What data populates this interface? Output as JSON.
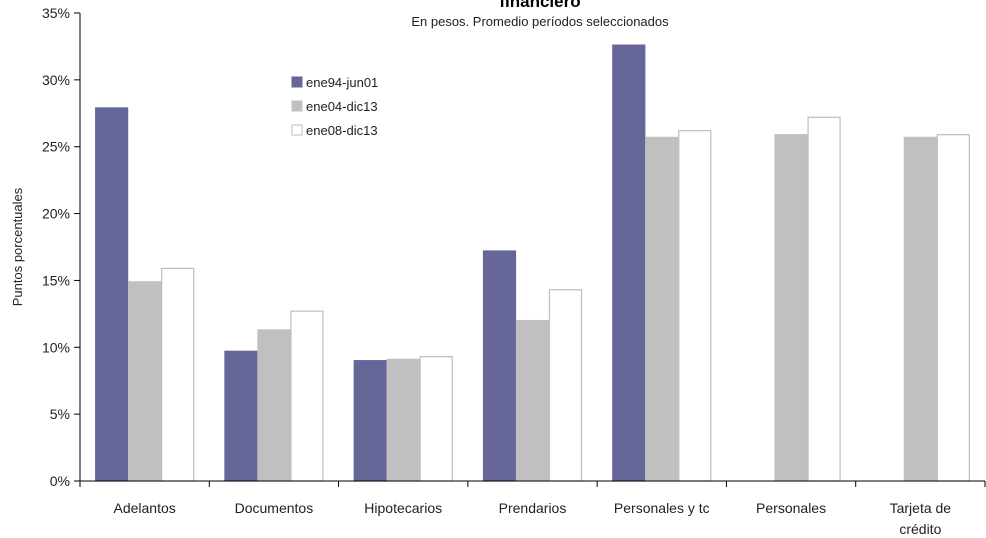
{
  "chart_data": {
    "type": "bar",
    "title": "financiero",
    "subtitle": "En pesos. Promedio períodos seleccionados",
    "ylabel": "Puntos porcentuales",
    "xlabel": "",
    "ylim": [
      0,
      35
    ],
    "yticks": [
      "0%",
      "5%",
      "10%",
      "15%",
      "20%",
      "25%",
      "30%",
      "35%"
    ],
    "categories": [
      [
        "Adelantos"
      ],
      [
        "Documentos"
      ],
      [
        "Hipotecarios"
      ],
      [
        "Prendarios"
      ],
      [
        "Personales y tc"
      ],
      [
        "Personales"
      ],
      [
        "Tarjeta de",
        "crédito"
      ]
    ],
    "series": [
      {
        "name": "ene94-jun01",
        "color": "#666699",
        "stroke": "#666699",
        "values": [
          27.9,
          9.7,
          9.0,
          17.2,
          32.6,
          null,
          null
        ]
      },
      {
        "name": "ene04-dic13",
        "color": "#c0c0c0",
        "stroke": "#c0c0c0",
        "values": [
          14.9,
          11.3,
          9.1,
          12.0,
          25.7,
          25.9,
          25.7
        ]
      },
      {
        "name": "ene08-dic13",
        "color": "#ffffff",
        "stroke": "#bdbdbd",
        "values": [
          15.9,
          12.7,
          9.3,
          14.3,
          26.2,
          27.2,
          25.9
        ]
      }
    ],
    "grid": false,
    "legend_position": "top-left"
  }
}
